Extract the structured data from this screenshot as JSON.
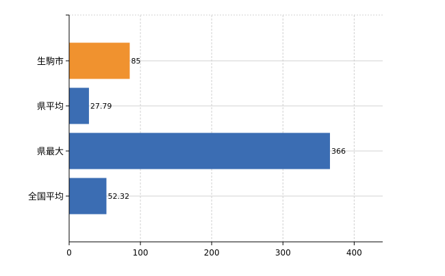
{
  "chart_data": {
    "type": "bar",
    "orientation": "horizontal",
    "categories": [
      "生駒市",
      "県平均",
      "県最大",
      "全国平均"
    ],
    "values": [
      85,
      27.79,
      366,
      52.32
    ],
    "data_labels": [
      "85",
      "27.79",
      "366",
      "52.32"
    ],
    "bar_colors": [
      "#f0922f",
      "#3b6db3",
      "#3b6db3",
      "#3b6db3"
    ],
    "xlim": [
      0,
      440
    ],
    "x_ticks": [
      0,
      100,
      200,
      300,
      400
    ],
    "x_tick_labels": [
      "0",
      "100",
      "200",
      "300",
      "400"
    ],
    "title": "",
    "xlabel": "",
    "ylabel": "",
    "grid": true,
    "legend": "none"
  }
}
